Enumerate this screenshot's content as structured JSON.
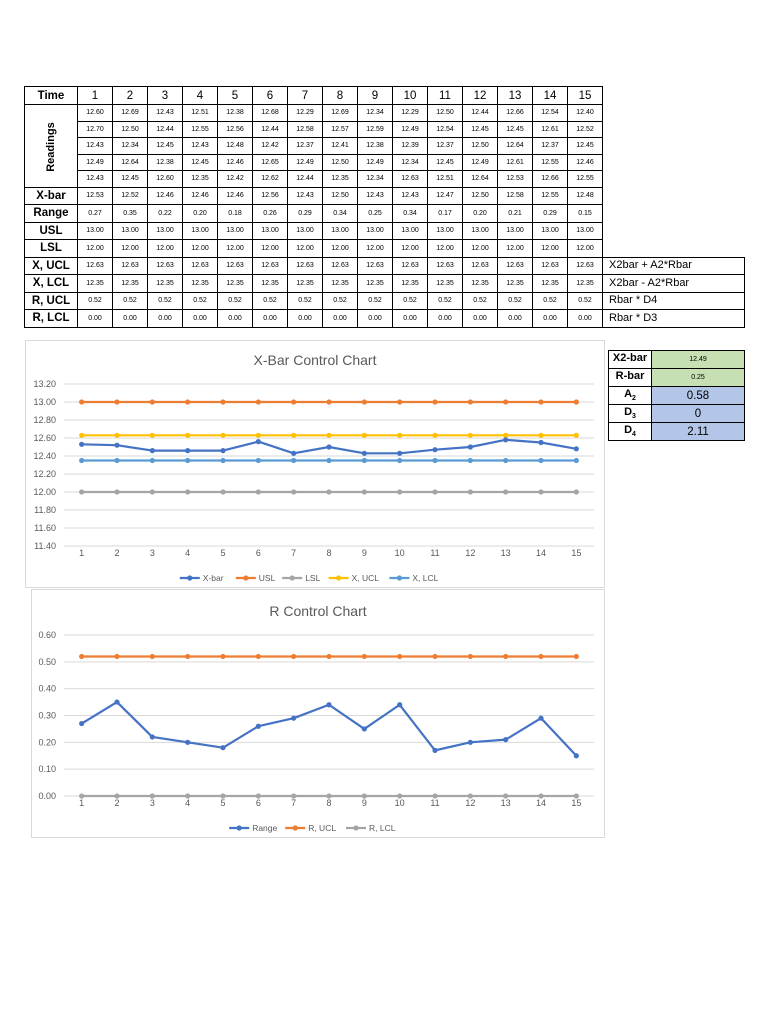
{
  "table": {
    "time_label": "Time",
    "times": [
      "1",
      "2",
      "3",
      "4",
      "5",
      "6",
      "7",
      "8",
      "9",
      "10",
      "11",
      "12",
      "13",
      "14",
      "15"
    ],
    "readings_label": "Readings",
    "readings": [
      [
        "12.60",
        "12.69",
        "12.43",
        "12.51",
        "12.38",
        "12.68",
        "12.29",
        "12.69",
        "12.34",
        "12.29",
        "12.50",
        "12.44",
        "12.66",
        "12.54",
        "12.40"
      ],
      [
        "12.70",
        "12.50",
        "12.44",
        "12.55",
        "12.56",
        "12.44",
        "12.58",
        "12.57",
        "12.59",
        "12.49",
        "12.54",
        "12.45",
        "12.45",
        "12.61",
        "12.52"
      ],
      [
        "12.43",
        "12.34",
        "12.45",
        "12.43",
        "12.48",
        "12.42",
        "12.37",
        "12.41",
        "12.38",
        "12.39",
        "12.37",
        "12.50",
        "12.64",
        "12.37",
        "12.45"
      ],
      [
        "12.49",
        "12.64",
        "12.38",
        "12.45",
        "12.46",
        "12.65",
        "12.49",
        "12.50",
        "12.49",
        "12.34",
        "12.45",
        "12.49",
        "12.61",
        "12.55",
        "12.46"
      ],
      [
        "12.43",
        "12.45",
        "12.60",
        "12.35",
        "12.42",
        "12.62",
        "12.44",
        "12.35",
        "12.34",
        "12.63",
        "12.51",
        "12.64",
        "12.53",
        "12.66",
        "12.55"
      ]
    ],
    "stat_rows": [
      {
        "label": "X-bar",
        "values": [
          "12.53",
          "12.52",
          "12.46",
          "12.46",
          "12.46",
          "12.56",
          "12.43",
          "12.50",
          "12.43",
          "12.43",
          "12.47",
          "12.50",
          "12.58",
          "12.55",
          "12.48"
        ],
        "formula": ""
      },
      {
        "label": "Range",
        "values": [
          "0.27",
          "0.35",
          "0.22",
          "0.20",
          "0.18",
          "0.26",
          "0.29",
          "0.34",
          "0.25",
          "0.34",
          "0.17",
          "0.20",
          "0.21",
          "0.29",
          "0.15"
        ],
        "formula": ""
      },
      {
        "label": "USL",
        "values": [
          "13.00",
          "13.00",
          "13.00",
          "13.00",
          "13.00",
          "13.00",
          "13.00",
          "13.00",
          "13.00",
          "13.00",
          "13.00",
          "13.00",
          "13.00",
          "13.00",
          "13.00"
        ],
        "formula": ""
      },
      {
        "label": "LSL",
        "values": [
          "12.00",
          "12.00",
          "12.00",
          "12.00",
          "12.00",
          "12.00",
          "12.00",
          "12.00",
          "12.00",
          "12.00",
          "12.00",
          "12.00",
          "12.00",
          "12.00",
          "12.00"
        ],
        "formula": ""
      },
      {
        "label": "X, UCL",
        "values": [
          "12.63",
          "12.63",
          "12.63",
          "12.63",
          "12.63",
          "12.63",
          "12.63",
          "12.63",
          "12.63",
          "12.63",
          "12.63",
          "12.63",
          "12.63",
          "12.63",
          "12.63"
        ],
        "formula": "X2bar + A2*Rbar"
      },
      {
        "label": "X, LCL",
        "values": [
          "12.35",
          "12.35",
          "12.35",
          "12.35",
          "12.35",
          "12.35",
          "12.35",
          "12.35",
          "12.35",
          "12.35",
          "12.35",
          "12.35",
          "12.35",
          "12.35",
          "12.35"
        ],
        "formula": "X2bar - A2*Rbar"
      },
      {
        "label": "R, UCL",
        "values": [
          "0.52",
          "0.52",
          "0.52",
          "0.52",
          "0.52",
          "0.52",
          "0.52",
          "0.52",
          "0.52",
          "0.52",
          "0.52",
          "0.52",
          "0.52",
          "0.52",
          "0.52"
        ],
        "formula": "Rbar * D4"
      },
      {
        "label": "R, LCL",
        "values": [
          "0.00",
          "0.00",
          "0.00",
          "0.00",
          "0.00",
          "0.00",
          "0.00",
          "0.00",
          "0.00",
          "0.00",
          "0.00",
          "0.00",
          "0.00",
          "0.00",
          "0.00"
        ],
        "formula": "Rbar * D3"
      }
    ]
  },
  "constants": [
    {
      "label": "X2-bar",
      "sub": "",
      "value": "12.49",
      "style": "green"
    },
    {
      "label": "R-bar",
      "sub": "",
      "value": "0.25",
      "style": "green"
    },
    {
      "label": "A",
      "sub": "2",
      "value": "0.58",
      "style": "blue"
    },
    {
      "label": "D",
      "sub": "3",
      "value": "0",
      "style": "blue"
    },
    {
      "label": "D",
      "sub": "4",
      "value": "2.11",
      "style": "blue"
    }
  ],
  "chart_data": [
    {
      "type": "line",
      "title": "X-Bar Control Chart",
      "x": [
        1,
        2,
        3,
        4,
        5,
        6,
        7,
        8,
        9,
        10,
        11,
        12,
        13,
        14,
        15
      ],
      "ylim": [
        11.4,
        13.2
      ],
      "yticks": [
        "11.40",
        "11.60",
        "11.80",
        "12.00",
        "12.20",
        "12.40",
        "12.60",
        "12.80",
        "13.00",
        "13.20"
      ],
      "grid": true,
      "legend": "bottom",
      "series": [
        {
          "name": "X-bar",
          "color": "#4472c4",
          "values": [
            12.53,
            12.52,
            12.46,
            12.46,
            12.46,
            12.56,
            12.43,
            12.5,
            12.43,
            12.43,
            12.47,
            12.5,
            12.58,
            12.55,
            12.48
          ]
        },
        {
          "name": "USL",
          "color": "#ed7d31",
          "values": [
            13,
            13,
            13,
            13,
            13,
            13,
            13,
            13,
            13,
            13,
            13,
            13,
            13,
            13,
            13
          ]
        },
        {
          "name": "LSL",
          "color": "#a5a5a5",
          "values": [
            12,
            12,
            12,
            12,
            12,
            12,
            12,
            12,
            12,
            12,
            12,
            12,
            12,
            12,
            12
          ]
        },
        {
          "name": "X, UCL",
          "color": "#ffc000",
          "values": [
            12.63,
            12.63,
            12.63,
            12.63,
            12.63,
            12.63,
            12.63,
            12.63,
            12.63,
            12.63,
            12.63,
            12.63,
            12.63,
            12.63,
            12.63
          ]
        },
        {
          "name": "X, LCL",
          "color": "#5b9bd5",
          "values": [
            12.35,
            12.35,
            12.35,
            12.35,
            12.35,
            12.35,
            12.35,
            12.35,
            12.35,
            12.35,
            12.35,
            12.35,
            12.35,
            12.35,
            12.35
          ]
        }
      ]
    },
    {
      "type": "line",
      "title": "R Control Chart",
      "x": [
        1,
        2,
        3,
        4,
        5,
        6,
        7,
        8,
        9,
        10,
        11,
        12,
        13,
        14,
        15
      ],
      "ylim": [
        0,
        0.6
      ],
      "yticks": [
        "0.00",
        "0.10",
        "0.20",
        "0.30",
        "0.40",
        "0.50",
        "0.60"
      ],
      "grid": true,
      "legend": "bottom",
      "series": [
        {
          "name": "Range",
          "color": "#4472c4",
          "values": [
            0.27,
            0.35,
            0.22,
            0.2,
            0.18,
            0.26,
            0.29,
            0.34,
            0.25,
            0.34,
            0.17,
            0.2,
            0.21,
            0.29,
            0.15
          ]
        },
        {
          "name": "R, UCL",
          "color": "#ed7d31",
          "values": [
            0.52,
            0.52,
            0.52,
            0.52,
            0.52,
            0.52,
            0.52,
            0.52,
            0.52,
            0.52,
            0.52,
            0.52,
            0.52,
            0.52,
            0.52
          ]
        },
        {
          "name": "R, LCL",
          "color": "#a5a5a5",
          "values": [
            0,
            0,
            0,
            0,
            0,
            0,
            0,
            0,
            0,
            0,
            0,
            0,
            0,
            0,
            0
          ]
        }
      ]
    }
  ]
}
